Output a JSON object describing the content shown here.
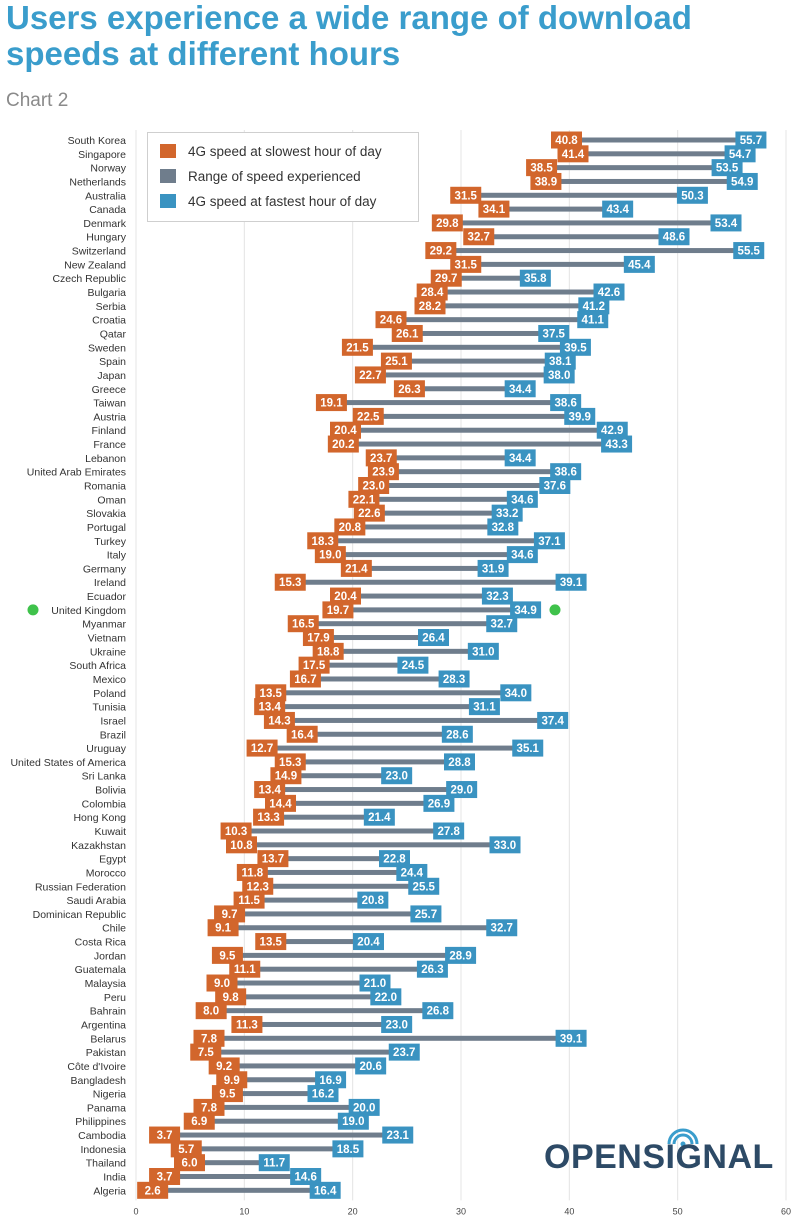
{
  "title": "Users experience a wide range of download speeds at different hours",
  "subtitle": "Chart 2",
  "logo_text": "OPENSIGNAL",
  "colors": {
    "slowest": "#d2662c",
    "range": "#6f7d8c",
    "fastest": "#3a93c1",
    "highlight": "#3fc24b"
  },
  "legend": [
    {
      "label": "4G speed at slowest hour of day",
      "color": "#d2662c"
    },
    {
      "label": "Range of speed experienced",
      "color": "#6f7d8c"
    },
    {
      "label": "4G speed at fastest hour of day",
      "color": "#3a93c1"
    }
  ],
  "chart_data": {
    "type": "range-bar",
    "xlim": [
      0,
      60
    ],
    "xticks": [
      0,
      10,
      20,
      30,
      40,
      50,
      60
    ],
    "grid": "vertical",
    "legend_position": "top-left",
    "highlight": "United Kingdom",
    "series": [
      {
        "name": "4G speed at slowest hour of day"
      },
      {
        "name": "Range of speed experienced"
      },
      {
        "name": "4G speed at fastest hour of day"
      }
    ],
    "countries": [
      {
        "name": "South Korea",
        "min": 40.8,
        "max": 55.7
      },
      {
        "name": "Singapore",
        "min": 41.4,
        "max": 54.7
      },
      {
        "name": "Norway",
        "min": 38.5,
        "max": 53.5
      },
      {
        "name": "Netherlands",
        "min": 38.9,
        "max": 54.9
      },
      {
        "name": "Australia",
        "min": 31.5,
        "max": 50.3
      },
      {
        "name": "Canada",
        "min": 34.1,
        "max": 43.4
      },
      {
        "name": "Denmark",
        "min": 29.8,
        "max": 53.4
      },
      {
        "name": "Hungary",
        "min": 32.7,
        "max": 48.6
      },
      {
        "name": "Switzerland",
        "min": 29.2,
        "max": 55.5
      },
      {
        "name": "New Zealand",
        "min": 31.5,
        "max": 45.4
      },
      {
        "name": "Czech Republic",
        "min": 29.7,
        "max": 35.8
      },
      {
        "name": "Bulgaria",
        "min": 28.4,
        "max": 42.6
      },
      {
        "name": "Serbia",
        "min": 28.2,
        "max": 41.2
      },
      {
        "name": "Croatia",
        "min": 24.6,
        "max": 41.1
      },
      {
        "name": "Qatar",
        "min": 26.1,
        "max": 37.5
      },
      {
        "name": "Sweden",
        "min": 21.5,
        "max": 39.5
      },
      {
        "name": "Spain",
        "min": 25.1,
        "max": 38.1
      },
      {
        "name": "Japan",
        "min": 22.7,
        "max": 38.0
      },
      {
        "name": "Greece",
        "min": 26.3,
        "max": 34.4
      },
      {
        "name": "Taiwan",
        "min": 19.1,
        "max": 38.6
      },
      {
        "name": "Austria",
        "min": 22.5,
        "max": 39.9
      },
      {
        "name": "Finland",
        "min": 20.4,
        "max": 42.9
      },
      {
        "name": "France",
        "min": 20.2,
        "max": 43.3
      },
      {
        "name": "Lebanon",
        "min": 23.7,
        "max": 34.4
      },
      {
        "name": "United Arab Emirates",
        "min": 23.9,
        "max": 38.6
      },
      {
        "name": "Romania",
        "min": 23.0,
        "max": 37.6
      },
      {
        "name": "Oman",
        "min": 22.1,
        "max": 34.6
      },
      {
        "name": "Slovakia",
        "min": 22.6,
        "max": 33.2
      },
      {
        "name": "Portugal",
        "min": 20.8,
        "max": 32.8
      },
      {
        "name": "Turkey",
        "min": 18.3,
        "max": 37.1
      },
      {
        "name": "Italy",
        "min": 19.0,
        "max": 34.6
      },
      {
        "name": "Germany",
        "min": 21.4,
        "max": 31.9
      },
      {
        "name": "Ireland",
        "min": 15.3,
        "max": 39.1
      },
      {
        "name": "Ecuador",
        "min": 20.4,
        "max": 32.3
      },
      {
        "name": "United Kingdom",
        "min": 19.7,
        "max": 34.9
      },
      {
        "name": "Myanmar",
        "min": 16.5,
        "max": 32.7
      },
      {
        "name": "Vietnam",
        "min": 17.9,
        "max": 26.4
      },
      {
        "name": "Ukraine",
        "min": 18.8,
        "max": 31.0
      },
      {
        "name": "South Africa",
        "min": 17.5,
        "max": 24.5
      },
      {
        "name": "Mexico",
        "min": 16.7,
        "max": 28.3
      },
      {
        "name": "Poland",
        "min": 13.5,
        "max": 34.0
      },
      {
        "name": "Tunisia",
        "min": 13.4,
        "max": 31.1
      },
      {
        "name": "Israel",
        "min": 14.3,
        "max": 37.4
      },
      {
        "name": "Brazil",
        "min": 16.4,
        "max": 28.6
      },
      {
        "name": "Uruguay",
        "min": 12.7,
        "max": 35.1
      },
      {
        "name": "United States of America",
        "min": 15.3,
        "max": 28.8
      },
      {
        "name": "Sri Lanka",
        "min": 14.9,
        "max": 23.0
      },
      {
        "name": "Bolivia",
        "min": 13.4,
        "max": 29.0
      },
      {
        "name": "Colombia",
        "min": 14.4,
        "max": 26.9
      },
      {
        "name": "Hong Kong",
        "min": 13.3,
        "max": 21.4
      },
      {
        "name": "Kuwait",
        "min": 10.3,
        "max": 27.8
      },
      {
        "name": "Kazakhstan",
        "min": 10.8,
        "max": 33.0
      },
      {
        "name": "Egypt",
        "min": 13.7,
        "max": 22.8
      },
      {
        "name": "Morocco",
        "min": 11.8,
        "max": 24.4
      },
      {
        "name": "Russian Federation",
        "min": 12.3,
        "max": 25.5
      },
      {
        "name": "Saudi Arabia",
        "min": 11.5,
        "max": 20.8
      },
      {
        "name": "Dominican Republic",
        "min": 9.7,
        "max": 25.7
      },
      {
        "name": "Chile",
        "min": 9.1,
        "max": 32.7
      },
      {
        "name": "Costa Rica",
        "min": 13.5,
        "max": 20.4
      },
      {
        "name": "Jordan",
        "min": 9.5,
        "max": 28.9
      },
      {
        "name": "Guatemala",
        "min": 11.1,
        "max": 26.3
      },
      {
        "name": "Malaysia",
        "min": 9.0,
        "max": 21.0
      },
      {
        "name": "Peru",
        "min": 9.8,
        "max": 22.0
      },
      {
        "name": "Bahrain",
        "min": 8.0,
        "max": 26.8
      },
      {
        "name": "Argentina",
        "min": 11.3,
        "max": 23.0
      },
      {
        "name": "Belarus",
        "min": 7.8,
        "max": 39.1
      },
      {
        "name": "Pakistan",
        "min": 7.5,
        "max": 23.7
      },
      {
        "name": "Côte d'Ivoire",
        "min": 9.2,
        "max": 20.6
      },
      {
        "name": "Bangladesh",
        "min": 9.9,
        "max": 16.9
      },
      {
        "name": "Nigeria",
        "min": 9.5,
        "max": 16.2
      },
      {
        "name": "Panama",
        "min": 7.8,
        "max": 20.0
      },
      {
        "name": "Philippines",
        "min": 6.9,
        "max": 19.0
      },
      {
        "name": "Cambodia",
        "min": 3.7,
        "max": 23.1
      },
      {
        "name": "Indonesia",
        "min": 5.7,
        "max": 18.5
      },
      {
        "name": "Thailand",
        "min": 6.0,
        "max": 11.7
      },
      {
        "name": "India",
        "min": 3.7,
        "max": 14.6
      },
      {
        "name": "Algeria",
        "min": 2.6,
        "max": 16.4
      }
    ]
  }
}
